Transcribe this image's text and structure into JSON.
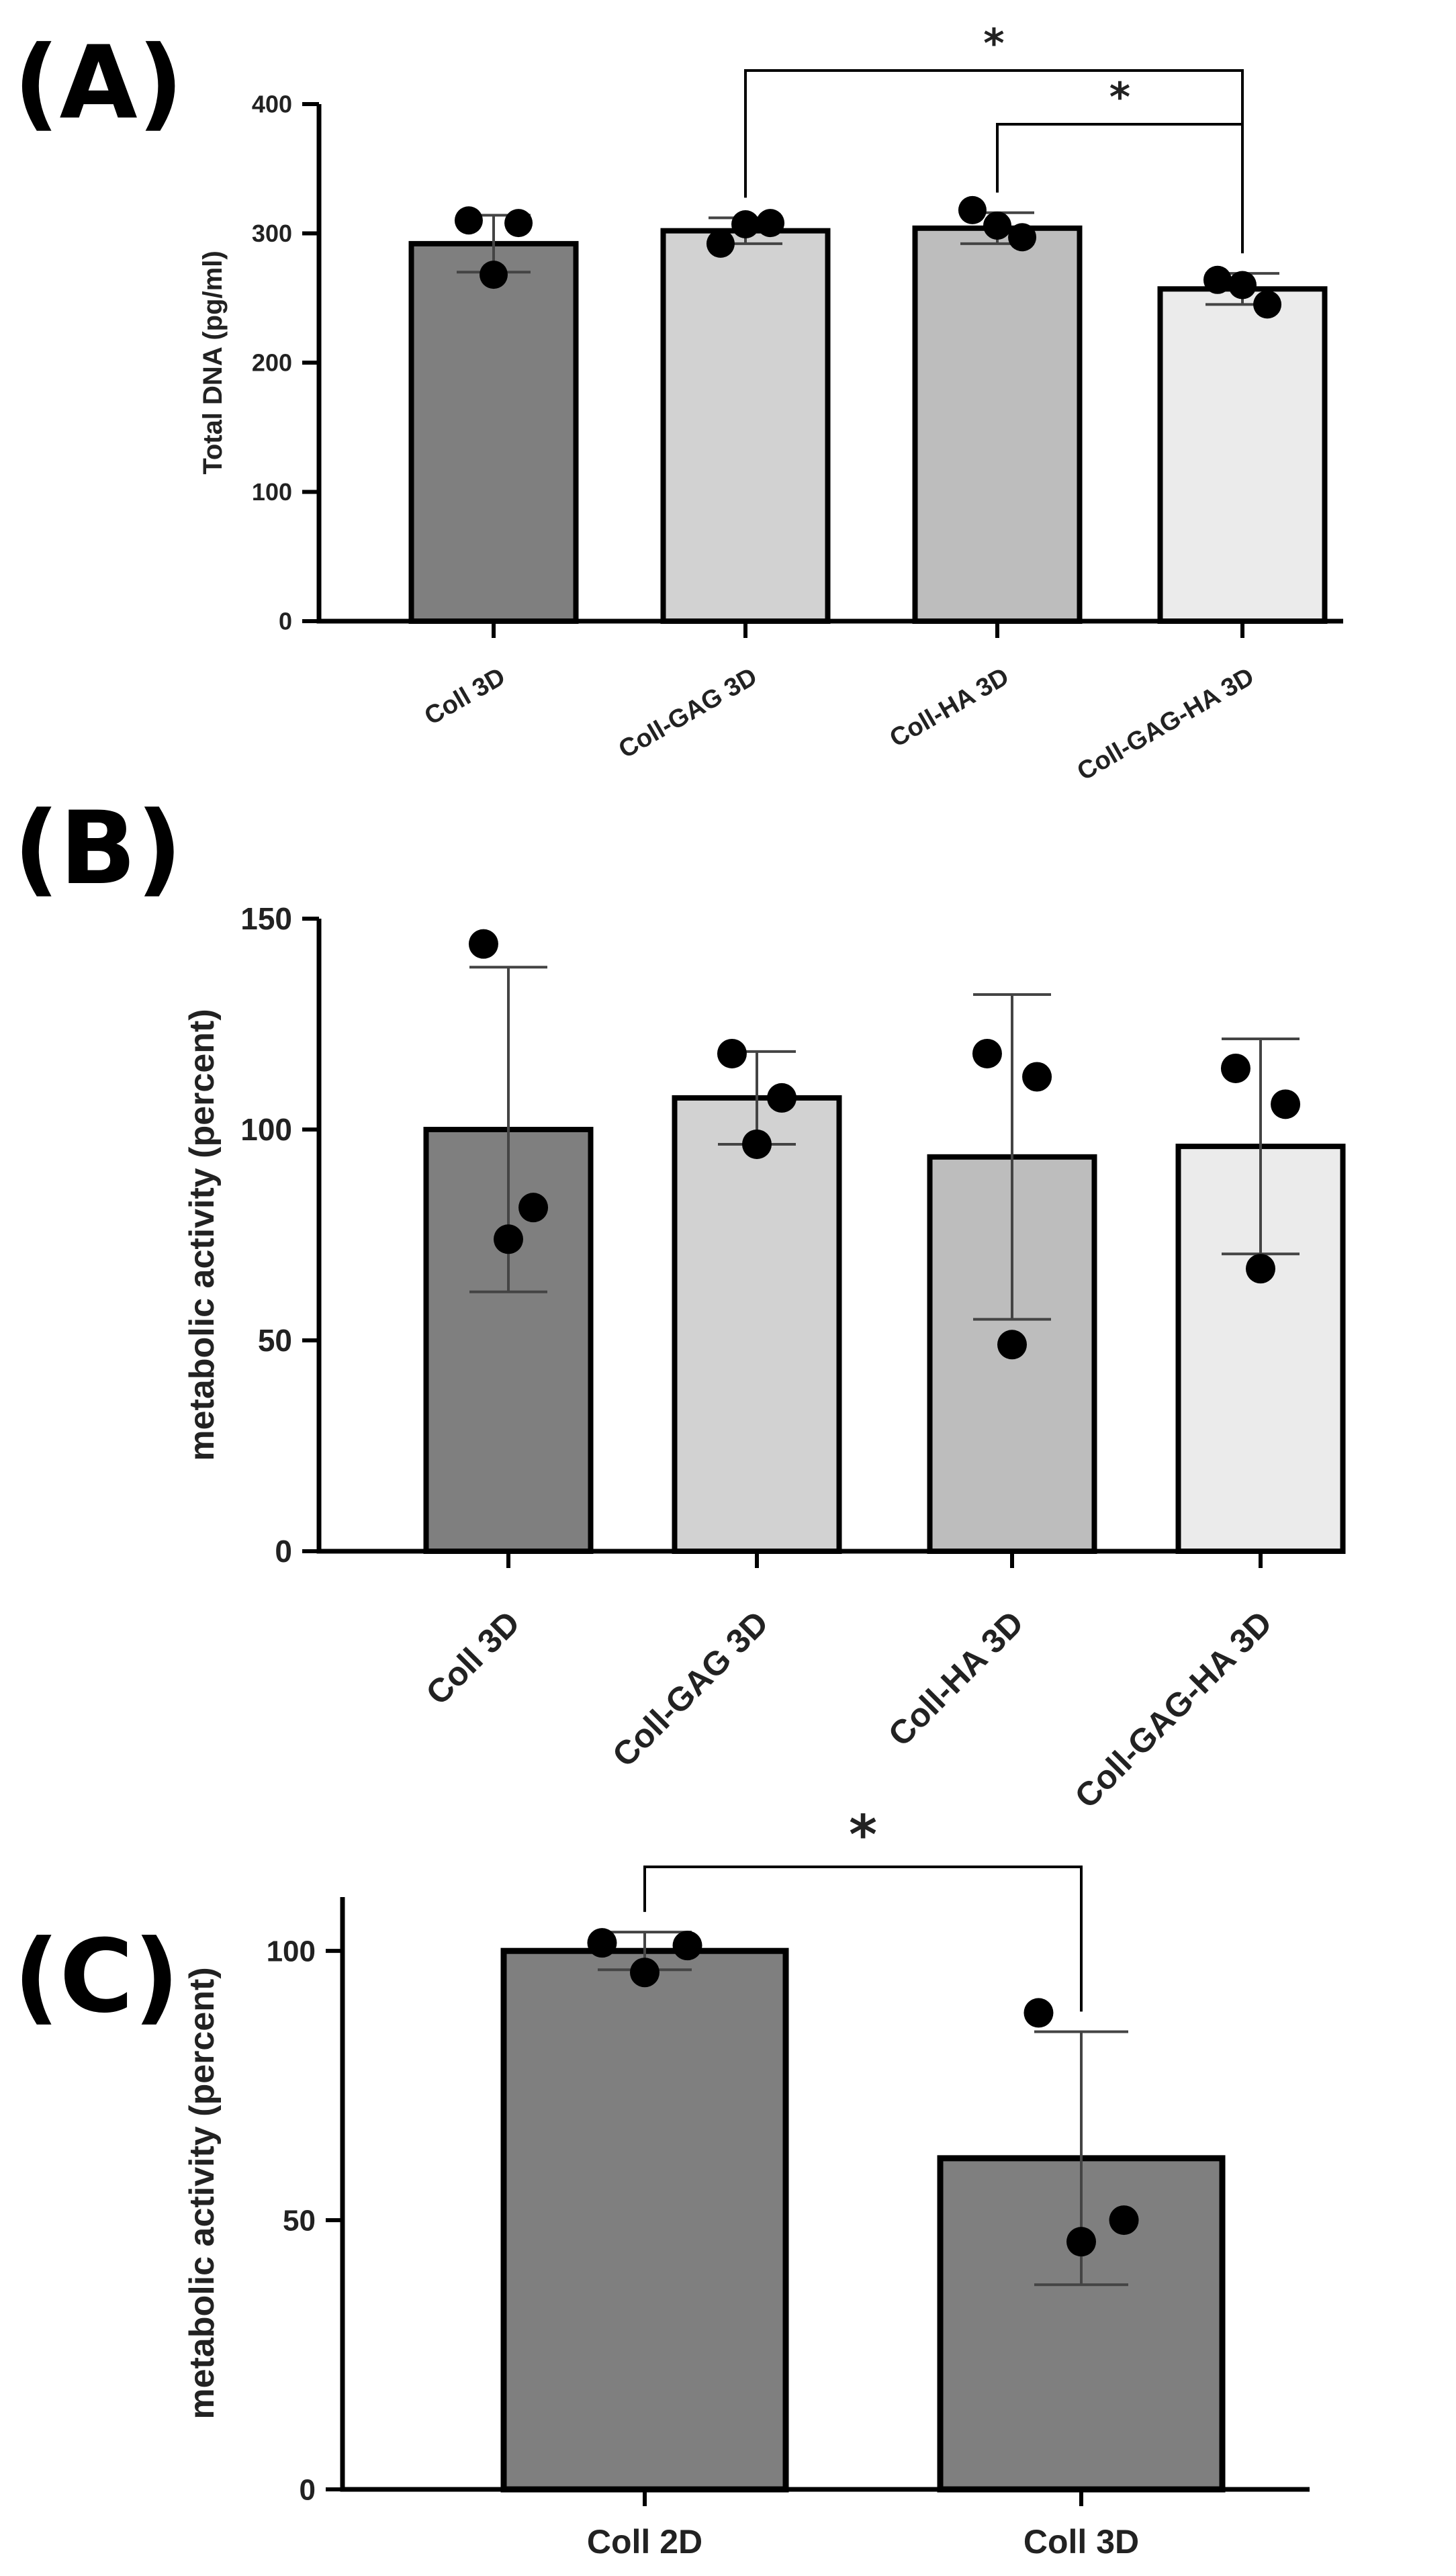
{
  "chart_data": [
    {
      "type": "bar",
      "panel_label": "(A)",
      "title": "",
      "xlabel": "",
      "ylabel": "Total DNA (pg/ml)",
      "ylim": [
        0,
        400
      ],
      "yticks": [
        0,
        100,
        200,
        300,
        400
      ],
      "grid": false,
      "categories": [
        "Coll 3D",
        "Coll-GAG 3D",
        "Coll-HA 3D",
        "Coll-GAG-HA 3D"
      ],
      "values": [
        292,
        302,
        304,
        257
      ],
      "error": [
        22,
        10,
        12,
        12
      ],
      "points": [
        [
          310,
          308,
          268
        ],
        [
          292,
          308,
          307
        ],
        [
          318,
          297,
          306
        ],
        [
          264,
          245,
          260
        ]
      ],
      "bar_colors": [
        "#7f7f7f",
        "#d2d2d2",
        "#bdbdbd",
        "#ebebeb"
      ],
      "significance": [
        {
          "from": 1,
          "to": 3,
          "label": "*"
        },
        {
          "from": 2,
          "to": 3,
          "label": "*"
        }
      ]
    },
    {
      "type": "bar",
      "panel_label": "(B)",
      "title": "",
      "xlabel": "",
      "ylabel": "metabolic activity (percent)",
      "ylim": [
        0,
        150
      ],
      "yticks": [
        0,
        50,
        100,
        150
      ],
      "grid": false,
      "categories": [
        "Coll 3D",
        "Coll-GAG 3D",
        "Coll-HA 3D",
        "Coll-GAG-HA 3D"
      ],
      "values": [
        100,
        107.5,
        93.5,
        96
      ],
      "error": [
        38.5,
        11,
        38.5,
        25.5
      ],
      "points": [
        [
          144,
          81.5,
          74
        ],
        [
          118,
          107.5,
          96.5
        ],
        [
          118,
          112.5,
          49
        ],
        [
          114.5,
          106,
          67
        ]
      ],
      "bar_colors": [
        "#7f7f7f",
        "#d2d2d2",
        "#bdbdbd",
        "#ebebeb"
      ],
      "significance": []
    },
    {
      "type": "bar",
      "panel_label": "(C)",
      "title": "",
      "xlabel": "",
      "ylabel": "metabolic activity (percent)",
      "ylim": [
        0,
        110
      ],
      "yticks": [
        0,
        50,
        100
      ],
      "grid": false,
      "categories": [
        "Coll 2D",
        "Coll 3D"
      ],
      "values": [
        100,
        61.5
      ],
      "error": [
        3.5,
        23.5
      ],
      "points": [
        [
          101.5,
          101,
          96
        ],
        [
          88.5,
          50,
          46
        ]
      ],
      "bar_colors": [
        "#7f7f7f",
        "#7f7f7f"
      ],
      "significance": [
        {
          "from": 0,
          "to": 1,
          "label": "*"
        }
      ]
    }
  ]
}
